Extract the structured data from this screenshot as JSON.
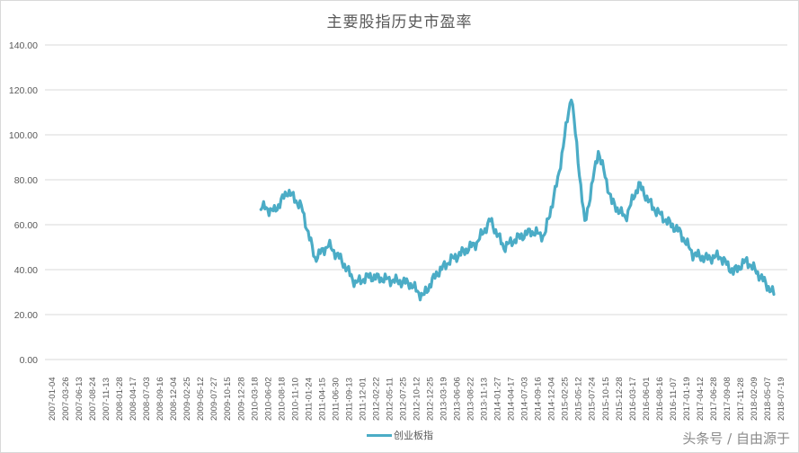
{
  "chart_data": {
    "type": "line",
    "title": "主要股指历史市盈率",
    "xlabel": "",
    "ylabel": "",
    "ylim": [
      0,
      140
    ],
    "yticks": [
      "0.00",
      "20.00",
      "40.00",
      "60.00",
      "80.00",
      "100.00",
      "120.00",
      "140.00"
    ],
    "grid": true,
    "legend_position": "bottom",
    "categories": [
      "2007-01-04",
      "2007-03-26",
      "2007-06-13",
      "2007-08-24",
      "2007-11-13",
      "2008-01-28",
      "2008-04-17",
      "2008-07-03",
      "2008-09-16",
      "2008-12-04",
      "2009-02-25",
      "2009-05-12",
      "2009-07-27",
      "2009-10-15",
      "2009-12-28",
      "2010-03-18",
      "2010-06-02",
      "2010-08-18",
      "2010-11-10",
      "2011-01-24",
      "2011-04-15",
      "2011-06-30",
      "2011-09-13",
      "2011-12-01",
      "2012-02-22",
      "2012-05-11",
      "2012-07-25",
      "2012-10-12",
      "2012-12-25",
      "2013-03-19",
      "2013-06-06",
      "2013-08-22",
      "2013-11-13",
      "2014-01-27",
      "2014-04-17",
      "2014-07-03",
      "2014-09-16",
      "2014-12-04",
      "2015-02-25",
      "2015-05-12",
      "2015-07-24",
      "2015-10-15",
      "2015-12-28",
      "2016-03-17",
      "2016-06-01",
      "2016-08-16",
      "2016-11-07",
      "2017-01-19",
      "2017-04-12",
      "2017-06-28",
      "2017-09-08",
      "2017-11-28",
      "2018-02-09",
      "2018-05-07",
      "2018-07-19"
    ],
    "series": [
      {
        "name": "创业板指",
        "color": "#4bacc6",
        "values": [
          null,
          null,
          null,
          null,
          null,
          null,
          null,
          null,
          null,
          null,
          null,
          null,
          null,
          null,
          null,
          null,
          68,
          66,
          75,
          68,
          45,
          51,
          44,
          34,
          37,
          36,
          35,
          34,
          28,
          38,
          44,
          48,
          52,
          62,
          50,
          54,
          57,
          55,
          80,
          118,
          60,
          93,
          70,
          63,
          78,
          68,
          62,
          57,
          47,
          45,
          46,
          39,
          44,
          37,
          29
        ]
      }
    ]
  },
  "legend": {
    "items": [
      {
        "label": "创业板指",
        "color": "#4bacc6"
      }
    ]
  },
  "watermark": "头条号 / 自由源于"
}
